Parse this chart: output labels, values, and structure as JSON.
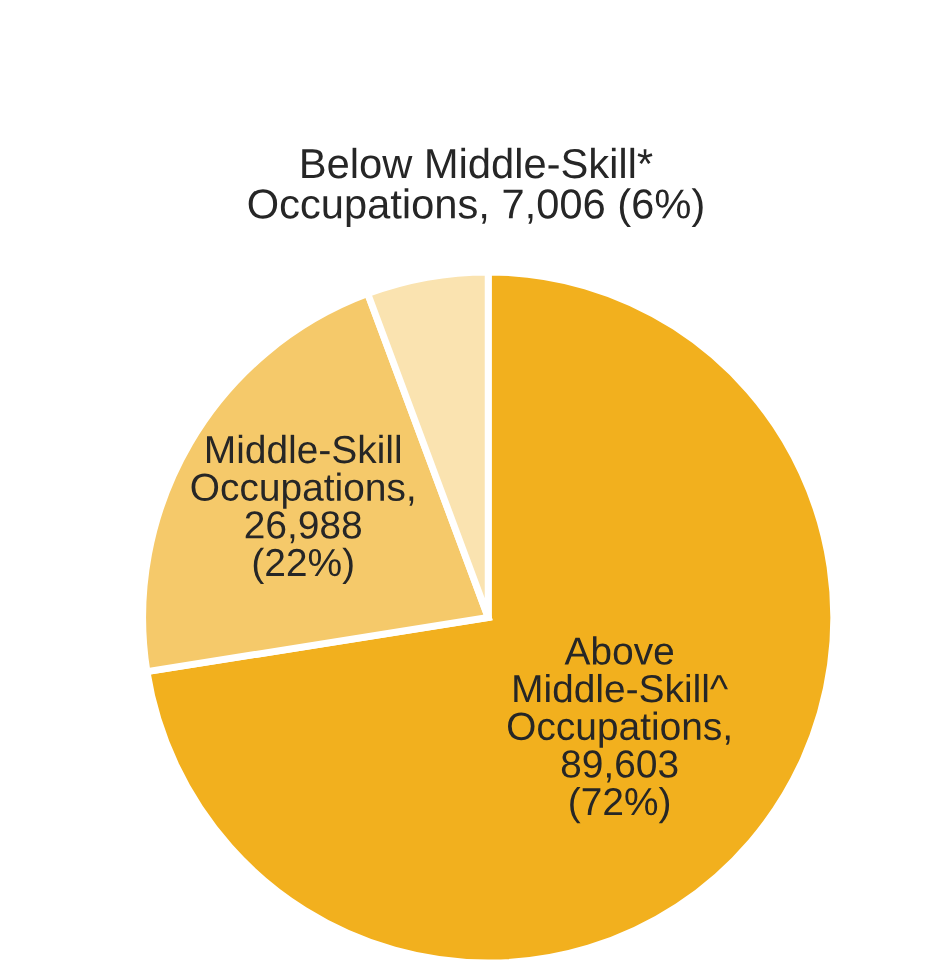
{
  "chart_data": {
    "type": "pie",
    "categories": [
      "Above\nMiddle-Skill^\nOccupations",
      "Middle-Skill\nOccupations",
      "Below Middle-Skill*\nOccupations"
    ],
    "values": [
      89603,
      26988,
      7006
    ],
    "value_labels": [
      ",\n89,603\n(72%)",
      ",\n26,988\n(22%)",
      ", 7,006 (6%)"
    ],
    "colors": [
      "#f2b01e",
      "#f5c96a",
      "#fae3b0"
    ]
  }
}
